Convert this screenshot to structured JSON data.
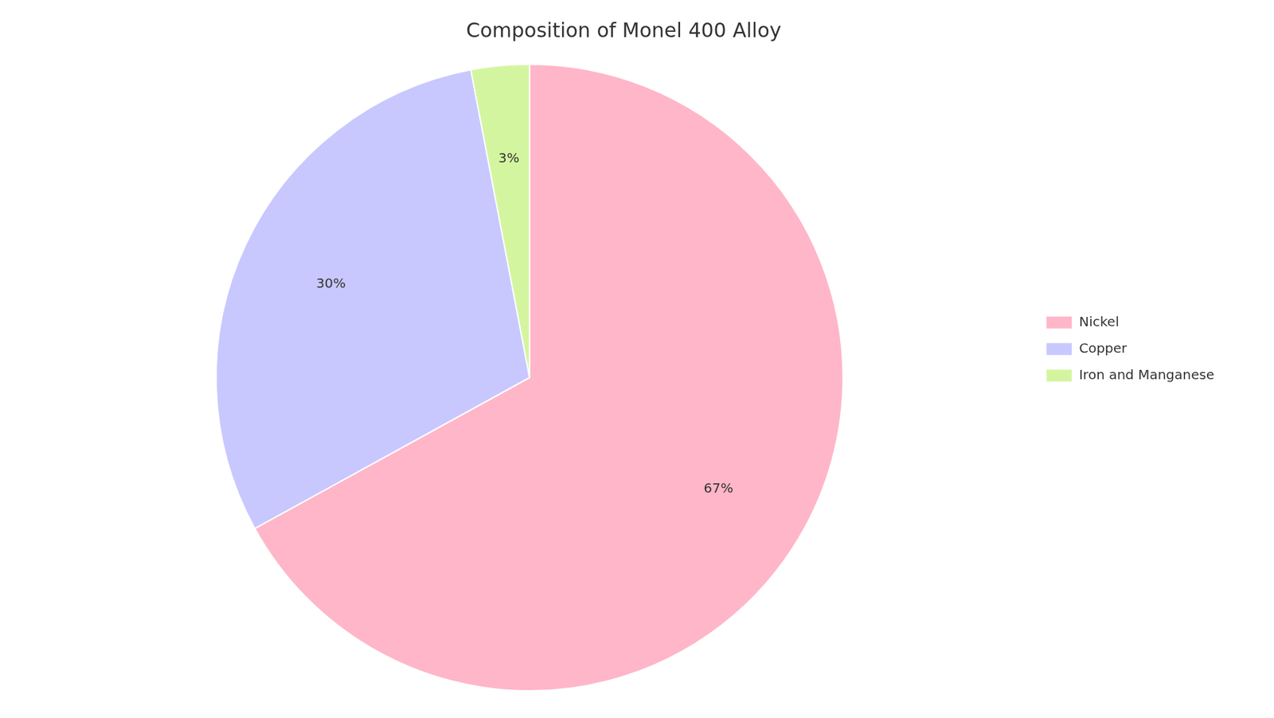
{
  "chart_data": {
    "type": "pie",
    "title": "Composition of Monel 400 Alloy",
    "categories": [
      "Nickel",
      "Copper",
      "Iron and Manganese"
    ],
    "values": [
      67,
      30,
      3
    ],
    "value_labels": [
      "67%",
      "30%",
      "3%"
    ],
    "colors": [
      "#FFB6C8",
      "#C8C8FF",
      "#D4F5A0"
    ],
    "data_labels": true,
    "legend": "right"
  }
}
